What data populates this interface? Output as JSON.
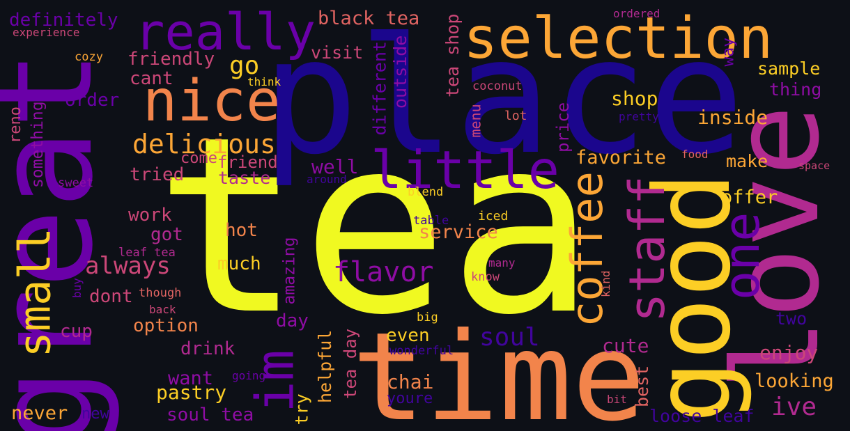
{
  "colors": {
    "background": "#0d1017",
    "yellow": "#f0f921",
    "gold": "#fcce25",
    "orange": "#fca636",
    "salmon": "#f2844b",
    "coral": "#e16462",
    "pink": "#cc4778",
    "magenta": "#b12a90",
    "purple": "#8f0da4",
    "violet": "#6a00a8",
    "indigo": "#41049d",
    "navy": "#1b068d"
  },
  "words": {
    "tea": "tea",
    "place": "place",
    "great": "great",
    "time": "time",
    "love": "love",
    "good": "good",
    "selection": "selection",
    "really": "really",
    "nice": "nice",
    "little": "little",
    "coffee": "coffee",
    "staff": "staff",
    "one": "one",
    "small": "small",
    "im": "im",
    "delicious": "delicious",
    "definitely": "definitely",
    "experience": "experience",
    "black_tea": "black tea",
    "ordered": "ordered",
    "way": "way",
    "cozy": "cozy",
    "friendly": "friendly",
    "go": "go",
    "visit": "visit",
    "cant": "cant",
    "think": "think",
    "order": "order",
    "coconut": "coconut",
    "sample": "sample",
    "thing": "thing",
    "reno": "reno",
    "something": "something",
    "different": "different",
    "outside": "outside",
    "tea_shop": "tea shop",
    "menu": "menu",
    "shop": "shop",
    "inside": "inside",
    "lot": "lot",
    "pretty": "pretty",
    "price": "price",
    "favorite": "favorite",
    "food": "food",
    "make": "make",
    "space": "space",
    "come": "come",
    "friend": "friend",
    "tried": "tried",
    "taste": "taste",
    "well": "well",
    "around": "around",
    "sweet": "sweet",
    "blend": "blend",
    "offer": "offer",
    "work": "work",
    "table": "table",
    "iced": "iced",
    "got": "got",
    "hot": "hot",
    "service": "service",
    "leaf_tea": "leaf tea",
    "always": "always",
    "much": "much",
    "amazing": "amazing",
    "flavor": "flavor",
    "many": "many",
    "kind": "kind",
    "know": "know",
    "buy": "buy",
    "dont": "dont",
    "though": "though",
    "back": "back",
    "day": "day",
    "big": "big",
    "two": "two",
    "cup": "cup",
    "option": "option",
    "soul": "soul",
    "drink": "drink",
    "tea_day": "tea day",
    "even": "even",
    "cute": "cute",
    "enjoy": "enjoy",
    "wonderful": "wonderful",
    "want": "want",
    "going": "going",
    "helpful": "helpful",
    "chai": "chai",
    "best": "best",
    "looking": "looking",
    "pastry": "pastry",
    "youre": "youre",
    "bit": "bit",
    "ive": "ive",
    "never": "never",
    "new": "new",
    "soul_tea": "soul tea",
    "try": "try",
    "loose_leaf": "loose leaf"
  }
}
